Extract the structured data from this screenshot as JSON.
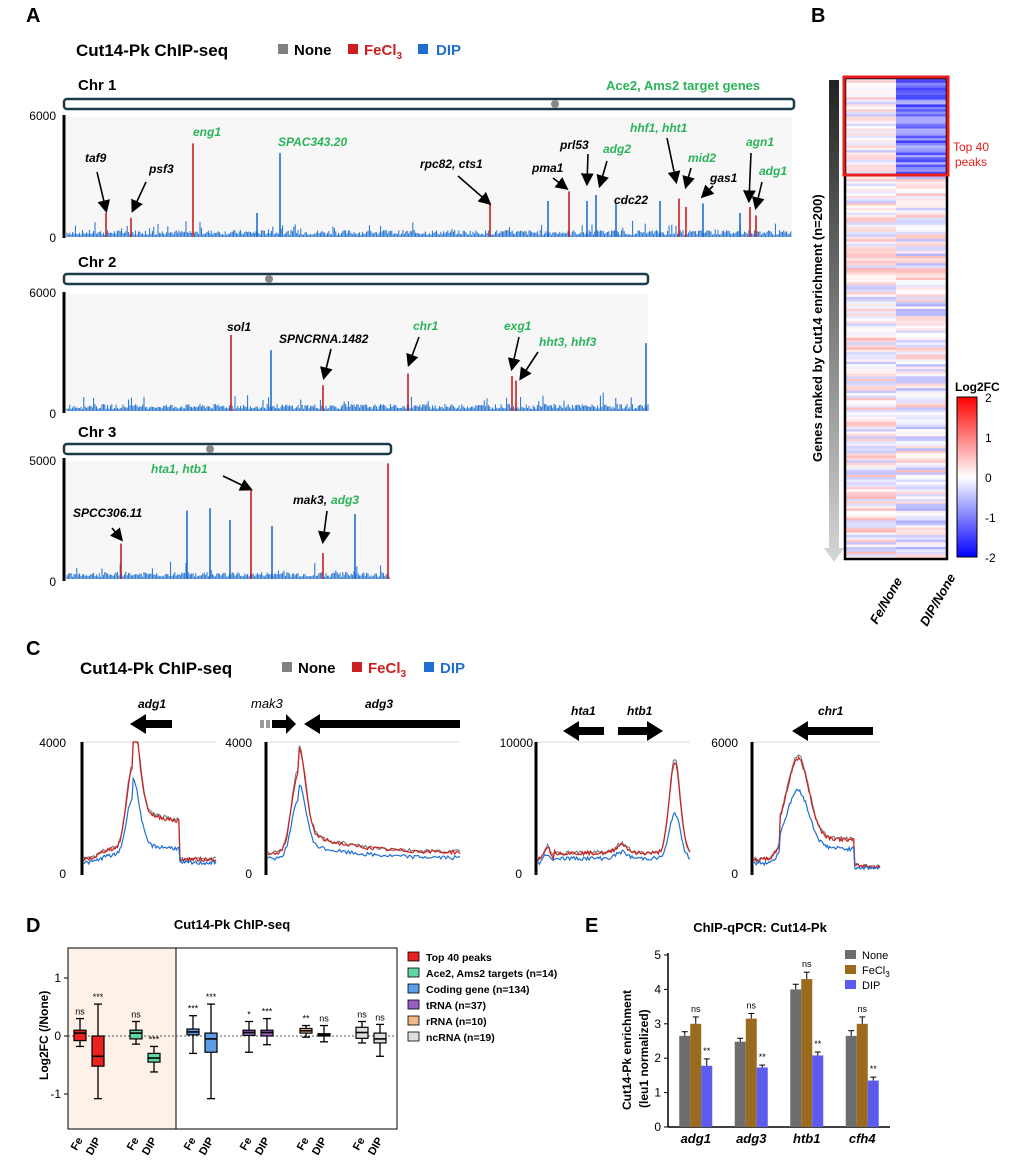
{
  "colors": {
    "none": "#808080",
    "fe": "#cc1f1f",
    "dip": "#1f6fd0",
    "target": "#2bb35a",
    "box_bg": "#f7f7f7"
  },
  "panel_labels": {
    "a": "A",
    "b": "B",
    "c": "C",
    "d": "D",
    "e": "E"
  },
  "panel_a": {
    "title": "Cut14-Pk ChIP-seq",
    "legend": {
      "none": "None",
      "fe": "FeCl",
      "fe_sub": "3",
      "dip": "DIP"
    },
    "target_label": "Ace2, Ams2 target genes",
    "chromosomes": [
      {
        "name": "Chr 1",
        "ymax": "6000",
        "ymin": "0",
        "genes": [
          {
            "label": "taf9",
            "target": false
          },
          {
            "label": "psf3",
            "target": false
          },
          {
            "label": "eng1",
            "target": true
          },
          {
            "label": "SPAC343.20",
            "target": true
          },
          {
            "label": "rpc82, cts1",
            "target": false
          },
          {
            "label": "pma1",
            "target": false
          },
          {
            "label": "prl53",
            "target": false
          },
          {
            "label": "adg2",
            "target": true
          },
          {
            "label": "cdc22",
            "target": false
          },
          {
            "label": "hhf1, hht1",
            "target": true
          },
          {
            "label": "mid2",
            "target": true
          },
          {
            "label": "gas1",
            "target": false
          },
          {
            "label": "agn1",
            "target": true
          },
          {
            "label": "adg1",
            "target": true
          }
        ]
      },
      {
        "name": "Chr 2",
        "ymax": "6000",
        "ymin": "0",
        "genes": [
          {
            "label": "sol1",
            "target": false
          },
          {
            "label": "SPNCRNA.1482",
            "target": false
          },
          {
            "label": "chr1",
            "target": true
          },
          {
            "label": "exg1",
            "target": true
          },
          {
            "label": "hht3, hhf3",
            "target": true
          }
        ]
      },
      {
        "name": "Chr 3",
        "ymax": "5000",
        "ymin": "0",
        "genes": [
          {
            "label": "SPCC306.11",
            "target": false
          },
          {
            "label": "hta1, htb1",
            "target": true
          },
          {
            "label": "mak3,",
            "target": false
          },
          {
            "label": "adg3",
            "target": true
          }
        ]
      }
    ]
  },
  "panel_b": {
    "ylabel": "Genes ranked by Cut14 enrichment (n=200)",
    "top_label_1": "Top 40",
    "top_label_2": "peaks",
    "xlabels": [
      "Fe/None",
      "DIP/None"
    ],
    "colorbar": {
      "title": "Log2FC",
      "ticks": [
        "2",
        "1",
        "0",
        "-1",
        "-2"
      ],
      "min": -2,
      "max": 2
    }
  },
  "panel_c": {
    "title": "Cut14-Pk ChIP-seq",
    "legend": {
      "none": "None",
      "fe": "FeCl",
      "fe_sub": "3",
      "dip": "DIP"
    },
    "loci": [
      {
        "ymax": "4000",
        "ymin": "0",
        "genes": [
          "adg1"
        ]
      },
      {
        "ymax": "4000",
        "ymin": "0",
        "genes": [
          "mak3",
          "adg3"
        ]
      },
      {
        "ymax": "10000",
        "ymin": "0",
        "genes": [
          "hta1",
          "htb1"
        ]
      },
      {
        "ymax": "6000",
        "ymin": "0",
        "genes": [
          "chr1"
        ]
      }
    ]
  },
  "panel_d": {
    "title": "Cut14-Pk ChIP-seq",
    "ylabel": "Log2FC (/None)",
    "yticks": [
      "1",
      "0",
      "-1"
    ],
    "xlabels": [
      "Fe",
      "DIP"
    ],
    "legend": [
      "Top 40 peaks",
      "Ace2, Ams2 targets (n=14)",
      "Coding gene (n=134)",
      "tRNA (n=37)",
      "rRNA (n=10)",
      "ncRNA (n=19)"
    ],
    "legend_colors": [
      "#e8231f",
      "#5fd6a4",
      "#5c9de8",
      "#9a5fc5",
      "#f0b882",
      "#dedede"
    ],
    "significance": [
      "ns",
      "***",
      "ns",
      "***",
      "***",
      "***",
      "*",
      "***",
      "**",
      "ns",
      "ns",
      "ns"
    ]
  },
  "chart_data": [
    {
      "type": "bar",
      "title": "ChIP-qPCR: Cut14-Pk",
      "ylabel_line1": "Cut14-Pk enrichment",
      "ylabel_line2": "(leu1 normalized)",
      "categories": [
        "adg1",
        "adg3",
        "htb1",
        "cfh4"
      ],
      "ylim": [
        0,
        5
      ],
      "yticks": [
        "0",
        "1",
        "2",
        "3",
        "4",
        "5"
      ],
      "series": [
        {
          "name": "None",
          "values": [
            2.65,
            2.48,
            4.0,
            2.65
          ],
          "errors": [
            0.12,
            0.1,
            0.15,
            0.15
          ]
        },
        {
          "name": "FeCl3",
          "values": [
            3.0,
            3.15,
            4.3,
            3.0
          ],
          "errors": [
            0.2,
            0.15,
            0.2,
            0.2
          ]
        },
        {
          "name": "DIP",
          "values": [
            1.78,
            1.73,
            2.08,
            1.35
          ],
          "errors": [
            0.2,
            0.07,
            0.1,
            0.1
          ]
        }
      ],
      "legend_text": [
        "None",
        "FeCl",
        "DIP"
      ],
      "legend_sub": "3",
      "significance": [
        [
          "ns",
          "**"
        ],
        [
          "ns",
          "**"
        ],
        [
          "ns",
          "**"
        ],
        [
          "ns",
          "**"
        ]
      ],
      "colors": [
        "#6d6d6d",
        "#9a6a1f",
        "#5b5bf0"
      ]
    }
  ]
}
